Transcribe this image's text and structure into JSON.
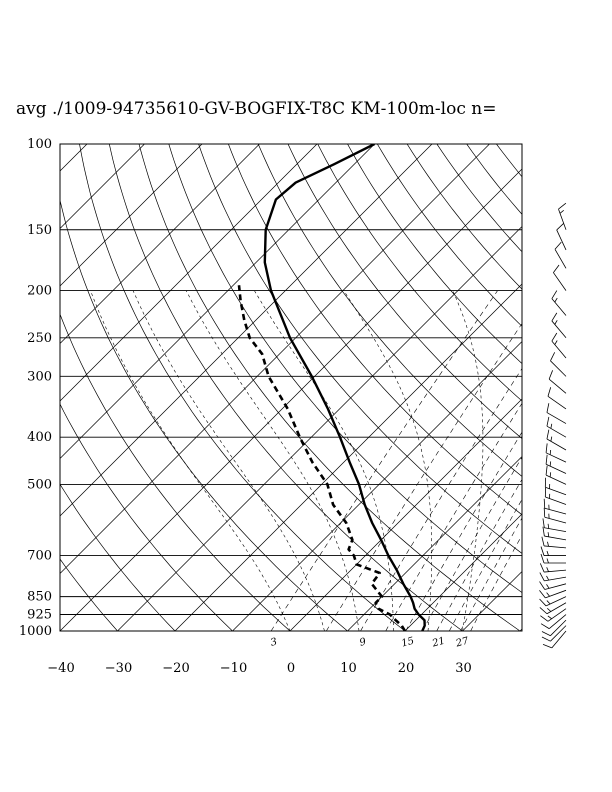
{
  "chart_data": {
    "type": "skew-t",
    "title": "avg ./1009-94735610-GV-BOGFIX-T8C KM-100m-loc n=",
    "pressure_levels": [
      100,
      150,
      200,
      250,
      300,
      400,
      500,
      700,
      850,
      925,
      1000
    ],
    "pressure_labels": [
      "100",
      "150",
      "200",
      "250",
      "300",
      "400",
      "500",
      "700",
      "850",
      "925",
      "1000"
    ],
    "temperature_ticks": [
      -40,
      -30,
      -20,
      -10,
      0,
      10,
      20,
      30
    ],
    "temperature_labels": [
      "−40",
      "−30",
      "−20",
      "−10",
      "0",
      "10",
      "20",
      "30"
    ],
    "mixing_ratio_labels": [
      "3",
      "9",
      "15",
      "21",
      "27"
    ],
    "ylim": [
      1000,
      100
    ],
    "xlim": [
      -40,
      40
    ],
    "temperature_profile": [
      {
        "p": 1000,
        "t": 23.0
      },
      {
        "p": 975,
        "t": 22.5
      },
      {
        "p": 950,
        "t": 21.5
      },
      {
        "p": 925,
        "t": 19.5
      },
      {
        "p": 900,
        "t": 17.8
      },
      {
        "p": 875,
        "t": 16.5
      },
      {
        "p": 850,
        "t": 15.0
      },
      {
        "p": 800,
        "t": 11.5
      },
      {
        "p": 750,
        "t": 8.0
      },
      {
        "p": 700,
        "t": 4.0
      },
      {
        "p": 650,
        "t": 0.0
      },
      {
        "p": 600,
        "t": -4.5
      },
      {
        "p": 550,
        "t": -9.0
      },
      {
        "p": 500,
        "t": -13.5
      },
      {
        "p": 450,
        "t": -19.0
      },
      {
        "p": 400,
        "t": -25.0
      },
      {
        "p": 350,
        "t": -32.0
      },
      {
        "p": 300,
        "t": -40.5
      },
      {
        "p": 250,
        "t": -51.0
      },
      {
        "p": 200,
        "t": -62.5
      },
      {
        "p": 175,
        "t": -68.5
      },
      {
        "p": 150,
        "t": -74.0
      },
      {
        "p": 130,
        "t": -77.5
      },
      {
        "p": 120,
        "t": -77.0
      },
      {
        "p": 110,
        "t": -73.5
      },
      {
        "p": 100,
        "t": -70.0
      }
    ],
    "dewpoint_profile": [
      {
        "p": 1000,
        "t": 20.0
      },
      {
        "p": 975,
        "t": 18.5
      },
      {
        "p": 950,
        "t": 16.5
      },
      {
        "p": 925,
        "t": 14.5
      },
      {
        "p": 900,
        "t": 11.5
      },
      {
        "p": 875,
        "t": 10.0
      },
      {
        "p": 850,
        "t": 10.0
      },
      {
        "p": 800,
        "t": 6.0
      },
      {
        "p": 760,
        "t": 5.5
      },
      {
        "p": 730,
        "t": 0.0
      },
      {
        "p": 700,
        "t": -2.0
      },
      {
        "p": 680,
        "t": -4.0
      },
      {
        "p": 650,
        "t": -5.0
      },
      {
        "p": 600,
        "t": -9.0
      },
      {
        "p": 550,
        "t": -14.5
      },
      {
        "p": 500,
        "t": -19.0
      },
      {
        "p": 450,
        "t": -25.5
      },
      {
        "p": 400,
        "t": -32.0
      },
      {
        "p": 350,
        "t": -39.0
      },
      {
        "p": 300,
        "t": -48.0
      },
      {
        "p": 270,
        "t": -53.0
      },
      {
        "p": 250,
        "t": -58.0
      },
      {
        "p": 230,
        "t": -62.0
      },
      {
        "p": 210,
        "t": -66.0
      },
      {
        "p": 195,
        "t": -69.0
      }
    ],
    "wind_profile": [
      {
        "p": 1000,
        "spd": 10,
        "dir": 220
      },
      {
        "p": 975,
        "spd": 10,
        "dir": 225
      },
      {
        "p": 950,
        "spd": 10,
        "dir": 225
      },
      {
        "p": 925,
        "spd": 10,
        "dir": 230
      },
      {
        "p": 900,
        "spd": 15,
        "dir": 235
      },
      {
        "p": 875,
        "spd": 15,
        "dir": 240
      },
      {
        "p": 850,
        "spd": 15,
        "dir": 245
      },
      {
        "p": 825,
        "spd": 15,
        "dir": 250
      },
      {
        "p": 800,
        "spd": 15,
        "dir": 255
      },
      {
        "p": 775,
        "spd": 15,
        "dir": 260
      },
      {
        "p": 750,
        "spd": 15,
        "dir": 265
      },
      {
        "p": 725,
        "spd": 15,
        "dir": 270
      },
      {
        "p": 700,
        "spd": 15,
        "dir": 270
      },
      {
        "p": 675,
        "spd": 15,
        "dir": 275
      },
      {
        "p": 650,
        "spd": 15,
        "dir": 280
      },
      {
        "p": 625,
        "spd": 15,
        "dir": 280
      },
      {
        "p": 600,
        "spd": 15,
        "dir": 285
      },
      {
        "p": 575,
        "spd": 15,
        "dir": 285
      },
      {
        "p": 550,
        "spd": 15,
        "dir": 290
      },
      {
        "p": 525,
        "spd": 15,
        "dir": 290
      },
      {
        "p": 500,
        "spd": 15,
        "dir": 295
      },
      {
        "p": 475,
        "spd": 15,
        "dir": 295
      },
      {
        "p": 450,
        "spd": 15,
        "dir": 295
      },
      {
        "p": 425,
        "spd": 15,
        "dir": 300
      },
      {
        "p": 400,
        "spd": 15,
        "dir": 300
      },
      {
        "p": 375,
        "spd": 10,
        "dir": 300
      },
      {
        "p": 350,
        "spd": 10,
        "dir": 305
      },
      {
        "p": 325,
        "spd": 10,
        "dir": 310
      },
      {
        "p": 300,
        "spd": 10,
        "dir": 315
      },
      {
        "p": 275,
        "spd": 15,
        "dir": 320
      },
      {
        "p": 250,
        "spd": 15,
        "dir": 320
      },
      {
        "p": 225,
        "spd": 15,
        "dir": 320
      },
      {
        "p": 200,
        "spd": 10,
        "dir": 325
      },
      {
        "p": 180,
        "spd": 10,
        "dir": 330
      },
      {
        "p": 165,
        "spd": 10,
        "dir": 335
      },
      {
        "p": 150,
        "spd": 15,
        "dir": 340
      }
    ],
    "grid": true
  }
}
